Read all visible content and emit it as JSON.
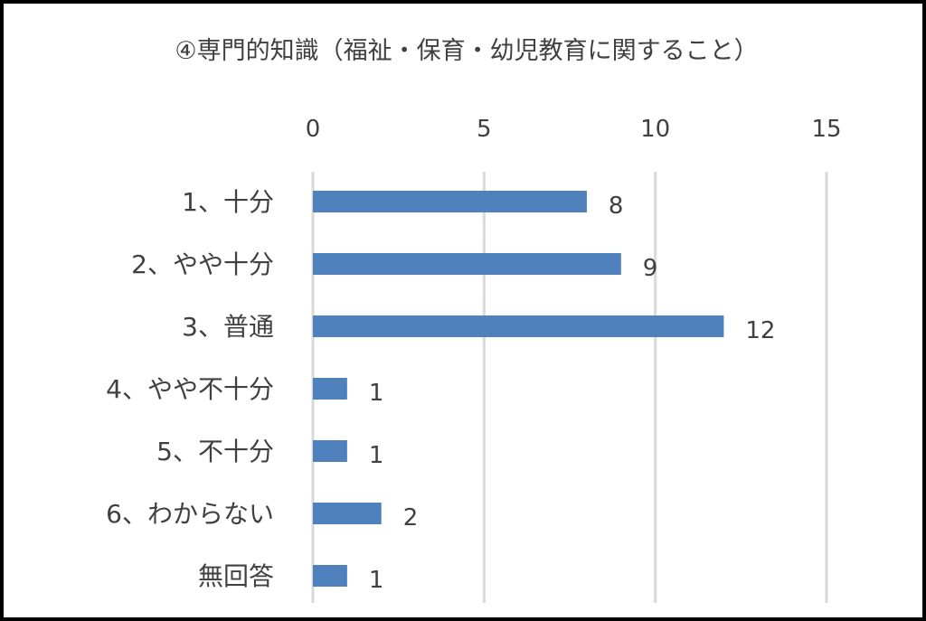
{
  "chart_data": {
    "type": "bar",
    "orientation": "horizontal",
    "title": "④専門的知識（福祉・保育・幼児教育に関すること）",
    "categories": [
      "1、十分",
      "2、やや十分",
      "3、普通",
      "4、やや不十分",
      "5、不十分",
      "6、わからない",
      "無回答"
    ],
    "values": [
      8,
      9,
      12,
      1,
      1,
      2,
      1
    ],
    "x_ticks": [
      0,
      5,
      10,
      15
    ],
    "xlim": [
      0,
      15
    ],
    "x_axis_position": "top",
    "grid": true,
    "legend": "none",
    "data_labels": true,
    "bar_color": "#4f81bd",
    "grid_color": "#d9d9d9",
    "text_color": "#404040"
  }
}
